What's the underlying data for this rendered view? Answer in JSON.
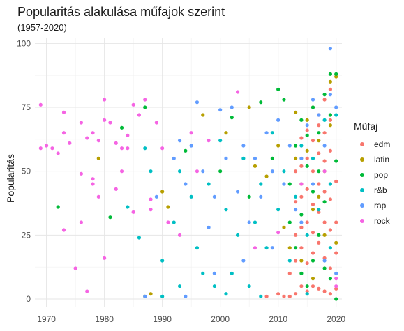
{
  "chart_data": {
    "type": "scatter",
    "title": "Popularitás alakulása műfajok szerint",
    "subtitle": "(1957-2020)",
    "xlabel": "",
    "ylabel": "Popularitás",
    "xlim": [
      1968,
      2021
    ],
    "ylim": [
      -3,
      102
    ],
    "x_ticks": [
      "1970",
      "1980",
      "1990",
      "2000",
      "2010",
      "2020"
    ],
    "y_ticks": [
      "0",
      "25",
      "50",
      "75",
      "100"
    ],
    "grid": true,
    "legend": {
      "title": "Műfaj",
      "position": "right"
    },
    "series": [
      {
        "name": "edm",
        "color": "#f8766d",
        "points": [
          [
            2008,
            1
          ],
          [
            2010,
            2
          ],
          [
            2011,
            1
          ],
          [
            2012,
            1
          ],
          [
            2013,
            2
          ],
          [
            2014,
            5
          ],
          [
            2015,
            3
          ],
          [
            2016,
            5
          ],
          [
            2017,
            4
          ],
          [
            2018,
            3
          ],
          [
            2019,
            2
          ],
          [
            2020,
            4
          ],
          [
            2012,
            10
          ],
          [
            2013,
            15
          ],
          [
            2014,
            20
          ],
          [
            2015,
            14
          ],
          [
            2016,
            18
          ],
          [
            2017,
            22
          ],
          [
            2018,
            16
          ],
          [
            2019,
            12
          ],
          [
            2020,
            18
          ],
          [
            2013,
            25
          ],
          [
            2014,
            28
          ],
          [
            2015,
            30
          ],
          [
            2016,
            26
          ],
          [
            2017,
            34
          ],
          [
            2018,
            30
          ],
          [
            2019,
            27
          ],
          [
            2020,
            30
          ],
          [
            2013,
            38
          ],
          [
            2014,
            40
          ],
          [
            2015,
            43
          ],
          [
            2016,
            37
          ],
          [
            2017,
            45
          ],
          [
            2018,
            42
          ],
          [
            2019,
            39
          ],
          [
            2020,
            46
          ],
          [
            2013,
            50
          ],
          [
            2014,
            52
          ],
          [
            2015,
            55
          ],
          [
            2016,
            50
          ],
          [
            2017,
            57
          ],
          [
            2018,
            54
          ],
          [
            2019,
            58
          ],
          [
            2014,
            63
          ],
          [
            2015,
            66
          ],
          [
            2016,
            62
          ],
          [
            2017,
            68
          ],
          [
            2018,
            65
          ],
          [
            2019,
            70
          ],
          [
            2016,
            75
          ],
          [
            2017,
            72
          ],
          [
            2018,
            78
          ],
          [
            2019,
            82
          ]
        ]
      },
      {
        "name": "latin",
        "color": "#b79f00",
        "points": [
          [
            1979,
            55
          ],
          [
            1987,
            1
          ],
          [
            1988,
            2
          ],
          [
            1990,
            42
          ],
          [
            1991,
            36
          ],
          [
            1997,
            72
          ],
          [
            2001,
            65
          ],
          [
            2005,
            75
          ],
          [
            2006,
            52
          ],
          [
            2008,
            48
          ],
          [
            2010,
            60
          ],
          [
            2011,
            28
          ],
          [
            2013,
            55
          ],
          [
            2014,
            45
          ],
          [
            2015,
            70
          ],
          [
            2016,
            35
          ],
          [
            2017,
            62
          ],
          [
            2018,
            50
          ],
          [
            2019,
            85
          ],
          [
            2020,
            87
          ],
          [
            2012,
            20
          ],
          [
            2014,
            15
          ],
          [
            2016,
            8
          ],
          [
            2018,
            25
          ],
          [
            2020,
            22
          ],
          [
            2017,
            40
          ],
          [
            2019,
            68
          ],
          [
            2015,
            58
          ],
          [
            2013,
            73
          ]
        ]
      },
      {
        "name": "pop",
        "color": "#00ba38",
        "points": [
          [
            1972,
            36
          ],
          [
            1981,
            32
          ],
          [
            1983,
            67
          ],
          [
            1987,
            75
          ],
          [
            1994,
            58
          ],
          [
            2000,
            50
          ],
          [
            2002,
            71
          ],
          [
            2005,
            40
          ],
          [
            2007,
            77
          ],
          [
            2009,
            55
          ],
          [
            2010,
            82
          ],
          [
            2011,
            78
          ],
          [
            2012,
            45
          ],
          [
            2013,
            60
          ],
          [
            2014,
            70
          ],
          [
            2015,
            52
          ],
          [
            2016,
            75
          ],
          [
            2017,
            65
          ],
          [
            2018,
            80
          ],
          [
            2019,
            88
          ],
          [
            2020,
            88
          ],
          [
            2013,
            20
          ],
          [
            2014,
            10
          ],
          [
            2015,
            5
          ],
          [
            2016,
            15
          ],
          [
            2017,
            25
          ],
          [
            2018,
            12
          ],
          [
            2019,
            8
          ],
          [
            2020,
            0
          ],
          [
            2012,
            30
          ],
          [
            2014,
            33
          ],
          [
            2016,
            42
          ],
          [
            2018,
            38
          ],
          [
            2020,
            54
          ],
          [
            2017,
            50
          ],
          [
            2015,
            64
          ],
          [
            2019,
            72
          ]
        ]
      },
      {
        "name": "r&b",
        "color": "#00bfc4",
        "points": [
          [
            1984,
            36
          ],
          [
            1986,
            24
          ],
          [
            1987,
            59
          ],
          [
            1988,
            50
          ],
          [
            1990,
            15
          ],
          [
            1992,
            30
          ],
          [
            1993,
            50
          ],
          [
            1995,
            40
          ],
          [
            1996,
            20
          ],
          [
            1998,
            45
          ],
          [
            1999,
            5
          ],
          [
            2000,
            62
          ],
          [
            2001,
            35
          ],
          [
            2002,
            10
          ],
          [
            2003,
            25
          ],
          [
            2004,
            55
          ],
          [
            2005,
            5
          ],
          [
            2006,
            30
          ],
          [
            2007,
            45
          ],
          [
            2008,
            20
          ],
          [
            2009,
            65
          ],
          [
            2010,
            35
          ],
          [
            2011,
            50
          ],
          [
            2012,
            15
          ],
          [
            2013,
            40
          ],
          [
            2014,
            60
          ],
          [
            2015,
            25
          ],
          [
            2016,
            55
          ],
          [
            2017,
            35
          ],
          [
            2018,
            70
          ],
          [
            2019,
            45
          ],
          [
            2020,
            72
          ],
          [
            1990,
            1
          ],
          [
            1993,
            5
          ],
          [
            1997,
            10
          ],
          [
            2001,
            2
          ],
          [
            2007,
            1
          ],
          [
            2015,
            2
          ],
          [
            2019,
            20
          ]
        ]
      },
      {
        "name": "rap",
        "color": "#619cff",
        "points": [
          [
            1987,
            1
          ],
          [
            1989,
            40
          ],
          [
            1992,
            55
          ],
          [
            1993,
            62
          ],
          [
            1994,
            45
          ],
          [
            1995,
            60
          ],
          [
            1996,
            77
          ],
          [
            1997,
            50
          ],
          [
            1998,
            28
          ],
          [
            1999,
            40
          ],
          [
            2000,
            74
          ],
          [
            2001,
            55
          ],
          [
            2002,
            75
          ],
          [
            2003,
            42
          ],
          [
            2004,
            60
          ],
          [
            2005,
            30
          ],
          [
            2006,
            55
          ],
          [
            2007,
            40
          ],
          [
            2008,
            65
          ],
          [
            2009,
            50
          ],
          [
            2010,
            70
          ],
          [
            2011,
            45
          ],
          [
            2012,
            60
          ],
          [
            2013,
            35
          ],
          [
            2014,
            55
          ],
          [
            2015,
            68
          ],
          [
            2016,
            45
          ],
          [
            2017,
            72
          ],
          [
            2018,
            60
          ],
          [
            2019,
            98
          ],
          [
            2020,
            75
          ],
          [
            1994,
            1
          ],
          [
            1999,
            10
          ],
          [
            2004,
            15
          ],
          [
            2009,
            20
          ],
          [
            2014,
            30
          ],
          [
            2018,
            15
          ],
          [
            2020,
            10
          ],
          [
            2016,
            78
          ],
          [
            2019,
            80
          ]
        ]
      },
      {
        "name": "rock",
        "color": "#f564e3",
        "points": [
          [
            1969,
            76
          ],
          [
            1969,
            59
          ],
          [
            1970,
            60
          ],
          [
            1971,
            59
          ],
          [
            1972,
            57
          ],
          [
            1973,
            27
          ],
          [
            1973,
            73
          ],
          [
            1973,
            65
          ],
          [
            1974,
            61
          ],
          [
            1975,
            12
          ],
          [
            1976,
            69
          ],
          [
            1976,
            49
          ],
          [
            1976,
            30
          ],
          [
            1977,
            63
          ],
          [
            1977,
            3
          ],
          [
            1978,
            65
          ],
          [
            1978,
            47
          ],
          [
            1978,
            45
          ],
          [
            1979,
            40
          ],
          [
            1979,
            62
          ],
          [
            1980,
            70
          ],
          [
            1980,
            78
          ],
          [
            1980,
            16
          ],
          [
            1981,
            69
          ],
          [
            1982,
            61
          ],
          [
            1982,
            43
          ],
          [
            1983,
            50
          ],
          [
            1983,
            59
          ],
          [
            1984,
            64
          ],
          [
            1984,
            59
          ],
          [
            1985,
            76
          ],
          [
            1985,
            34
          ],
          [
            1986,
            72
          ],
          [
            1987,
            78
          ],
          [
            1988,
            35
          ],
          [
            1988,
            39
          ],
          [
            1989,
            69
          ],
          [
            1990,
            59
          ],
          [
            1991,
            30
          ],
          [
            1993,
            25
          ],
          [
            1995,
            65
          ],
          [
            1996,
            50
          ],
          [
            1998,
            62
          ],
          [
            2003,
            81
          ],
          [
            2006,
            20
          ],
          [
            2010,
            26
          ],
          [
            2014,
            45
          ],
          [
            2018,
            50
          ],
          [
            2020,
            8
          ],
          [
            2020,
            5
          ]
        ]
      }
    ]
  }
}
